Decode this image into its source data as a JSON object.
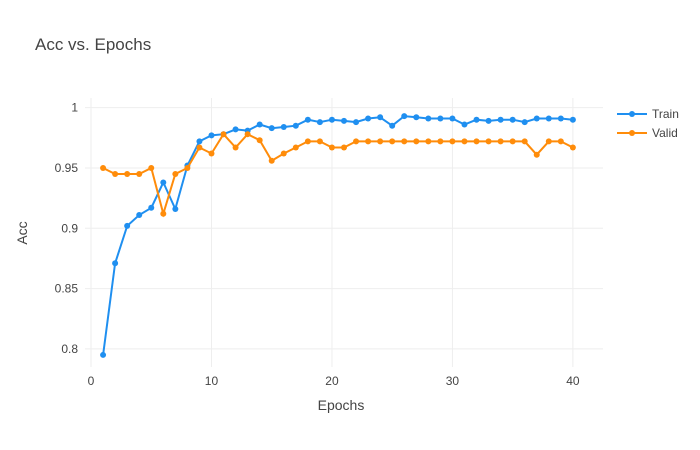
{
  "chart_data": {
    "type": "line",
    "title": "Acc vs. Epochs",
    "xlabel": "Epochs",
    "ylabel": "Acc",
    "xlim": [
      -0.5,
      42.5
    ],
    "ylim": [
      0.785,
      1.008
    ],
    "x_ticks": [
      0,
      10,
      20,
      30,
      40
    ],
    "y_ticks": [
      0.8,
      0.85,
      0.9,
      0.95,
      1
    ],
    "y_tick_labels": [
      "0.8",
      "0.85",
      "0.9",
      "0.95",
      "1"
    ],
    "grid": true,
    "legend_position": "top-right",
    "x": [
      1,
      2,
      3,
      4,
      5,
      6,
      7,
      8,
      9,
      10,
      11,
      12,
      13,
      14,
      15,
      16,
      17,
      18,
      19,
      20,
      21,
      22,
      23,
      24,
      25,
      26,
      27,
      28,
      29,
      30,
      31,
      32,
      33,
      34,
      35,
      36,
      37,
      38,
      39,
      40
    ],
    "series": [
      {
        "name": "Train",
        "color": "#1f8ff0",
        "values": [
          0.795,
          0.871,
          0.902,
          0.911,
          0.917,
          0.938,
          0.916,
          0.952,
          0.972,
          0.977,
          0.978,
          0.982,
          0.981,
          0.986,
          0.983,
          0.984,
          0.985,
          0.99,
          0.988,
          0.99,
          0.989,
          0.988,
          0.991,
          0.992,
          0.985,
          0.993,
          0.992,
          0.991,
          0.991,
          0.991,
          0.986,
          0.99,
          0.989,
          0.99,
          0.99,
          0.988,
          0.991,
          0.991,
          0.991,
          0.99
        ]
      },
      {
        "name": "Valid",
        "color": "#ff8c0a",
        "values": [
          0.95,
          0.945,
          0.945,
          0.945,
          0.95,
          0.912,
          0.945,
          0.95,
          0.967,
          0.962,
          0.978,
          0.967,
          0.978,
          0.973,
          0.956,
          0.962,
          0.967,
          0.972,
          0.972,
          0.967,
          0.967,
          0.972,
          0.972,
          0.972,
          0.972,
          0.972,
          0.972,
          0.972,
          0.972,
          0.972,
          0.972,
          0.972,
          0.972,
          0.972,
          0.972,
          0.972,
          0.961,
          0.972,
          0.972,
          0.967
        ]
      }
    ]
  }
}
